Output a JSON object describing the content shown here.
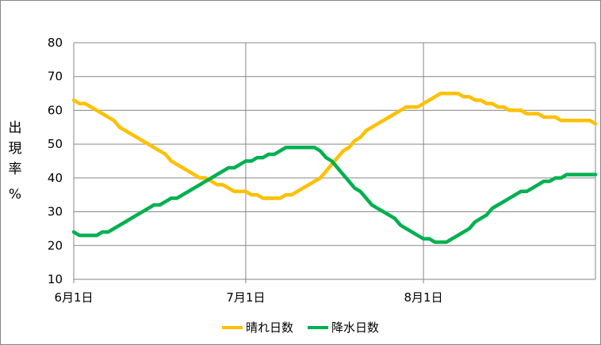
{
  "chart_data": {
    "type": "line",
    "title": "",
    "xlabel": "",
    "ylabel": "出現率 %",
    "ylabel_parts": [
      "出",
      "現",
      "率",
      "%"
    ],
    "ylim": [
      10,
      80
    ],
    "yticks": [
      10,
      20,
      30,
      40,
      50,
      60,
      70,
      80
    ],
    "xticks": [
      {
        "label": "6月1日",
        "day": 0
      },
      {
        "label": "7月1日",
        "day": 30
      },
      {
        "label": "8月1日",
        "day": 61
      }
    ],
    "x_range": [
      0,
      91
    ],
    "grid": true,
    "legend_position": "bottom",
    "series": [
      {
        "name": "晴れ日数",
        "color": "#FFC000",
        "points": [
          [
            0,
            63
          ],
          [
            1,
            62
          ],
          [
            2,
            62
          ],
          [
            3,
            61
          ],
          [
            4,
            60
          ],
          [
            5,
            59
          ],
          [
            6,
            58
          ],
          [
            7,
            57
          ],
          [
            8,
            55
          ],
          [
            9,
            54
          ],
          [
            10,
            53
          ],
          [
            11,
            52
          ],
          [
            12,
            51
          ],
          [
            13,
            50
          ],
          [
            14,
            49
          ],
          [
            15,
            48
          ],
          [
            16,
            47
          ],
          [
            17,
            45
          ],
          [
            18,
            44
          ],
          [
            19,
            43
          ],
          [
            20,
            42
          ],
          [
            21,
            41
          ],
          [
            22,
            40
          ],
          [
            23,
            40
          ],
          [
            24,
            39
          ],
          [
            25,
            38
          ],
          [
            26,
            38
          ],
          [
            27,
            37
          ],
          [
            28,
            36
          ],
          [
            29,
            36
          ],
          [
            30,
            36
          ],
          [
            31,
            35
          ],
          [
            32,
            35
          ],
          [
            33,
            34
          ],
          [
            34,
            34
          ],
          [
            35,
            34
          ],
          [
            36,
            34
          ],
          [
            37,
            35
          ],
          [
            38,
            35
          ],
          [
            39,
            36
          ],
          [
            40,
            37
          ],
          [
            41,
            38
          ],
          [
            42,
            39
          ],
          [
            43,
            40
          ],
          [
            44,
            42
          ],
          [
            45,
            44
          ],
          [
            46,
            46
          ],
          [
            47,
            48
          ],
          [
            48,
            49
          ],
          [
            49,
            51
          ],
          [
            50,
            52
          ],
          [
            51,
            54
          ],
          [
            52,
            55
          ],
          [
            53,
            56
          ],
          [
            54,
            57
          ],
          [
            55,
            58
          ],
          [
            56,
            59
          ],
          [
            57,
            60
          ],
          [
            58,
            61
          ],
          [
            59,
            61
          ],
          [
            60,
            61
          ],
          [
            61,
            62
          ],
          [
            62,
            63
          ],
          [
            63,
            64
          ],
          [
            64,
            65
          ],
          [
            65,
            65
          ],
          [
            66,
            65
          ],
          [
            67,
            65
          ],
          [
            68,
            64
          ],
          [
            69,
            64
          ],
          [
            70,
            63
          ],
          [
            71,
            63
          ],
          [
            72,
            62
          ],
          [
            73,
            62
          ],
          [
            74,
            61
          ],
          [
            75,
            61
          ],
          [
            76,
            60
          ],
          [
            77,
            60
          ],
          [
            78,
            60
          ],
          [
            79,
            59
          ],
          [
            80,
            59
          ],
          [
            81,
            59
          ],
          [
            82,
            58
          ],
          [
            83,
            58
          ],
          [
            84,
            58
          ],
          [
            85,
            57
          ],
          [
            86,
            57
          ],
          [
            87,
            57
          ],
          [
            88,
            57
          ],
          [
            89,
            57
          ],
          [
            90,
            57
          ],
          [
            91,
            56
          ]
        ]
      },
      {
        "name": "降水日数",
        "color": "#00B050",
        "points": [
          [
            0,
            24
          ],
          [
            1,
            23
          ],
          [
            2,
            23
          ],
          [
            3,
            23
          ],
          [
            4,
            23
          ],
          [
            5,
            24
          ],
          [
            6,
            24
          ],
          [
            7,
            25
          ],
          [
            8,
            26
          ],
          [
            9,
            27
          ],
          [
            10,
            28
          ],
          [
            11,
            29
          ],
          [
            12,
            30
          ],
          [
            13,
            31
          ],
          [
            14,
            32
          ],
          [
            15,
            32
          ],
          [
            16,
            33
          ],
          [
            17,
            34
          ],
          [
            18,
            34
          ],
          [
            19,
            35
          ],
          [
            20,
            36
          ],
          [
            21,
            37
          ],
          [
            22,
            38
          ],
          [
            23,
            39
          ],
          [
            24,
            40
          ],
          [
            25,
            41
          ],
          [
            26,
            42
          ],
          [
            27,
            43
          ],
          [
            28,
            43
          ],
          [
            29,
            44
          ],
          [
            30,
            45
          ],
          [
            31,
            45
          ],
          [
            32,
            46
          ],
          [
            33,
            46
          ],
          [
            34,
            47
          ],
          [
            35,
            47
          ],
          [
            36,
            48
          ],
          [
            37,
            49
          ],
          [
            38,
            49
          ],
          [
            39,
            49
          ],
          [
            40,
            49
          ],
          [
            41,
            49
          ],
          [
            42,
            49
          ],
          [
            43,
            48
          ],
          [
            44,
            46
          ],
          [
            45,
            45
          ],
          [
            46,
            43
          ],
          [
            47,
            41
          ],
          [
            48,
            39
          ],
          [
            49,
            37
          ],
          [
            50,
            36
          ],
          [
            51,
            34
          ],
          [
            52,
            32
          ],
          [
            53,
            31
          ],
          [
            54,
            30
          ],
          [
            55,
            29
          ],
          [
            56,
            28
          ],
          [
            57,
            26
          ],
          [
            58,
            25
          ],
          [
            59,
            24
          ],
          [
            60,
            23
          ],
          [
            61,
            22
          ],
          [
            62,
            22
          ],
          [
            63,
            21
          ],
          [
            64,
            21
          ],
          [
            65,
            21
          ],
          [
            66,
            22
          ],
          [
            67,
            23
          ],
          [
            68,
            24
          ],
          [
            69,
            25
          ],
          [
            70,
            27
          ],
          [
            71,
            28
          ],
          [
            72,
            29
          ],
          [
            73,
            31
          ],
          [
            74,
            32
          ],
          [
            75,
            33
          ],
          [
            76,
            34
          ],
          [
            77,
            35
          ],
          [
            78,
            36
          ],
          [
            79,
            36
          ],
          [
            80,
            37
          ],
          [
            81,
            38
          ],
          [
            82,
            39
          ],
          [
            83,
            39
          ],
          [
            84,
            40
          ],
          [
            85,
            40
          ],
          [
            86,
            41
          ],
          [
            87,
            41
          ],
          [
            88,
            41
          ],
          [
            89,
            41
          ],
          [
            90,
            41
          ],
          [
            91,
            41
          ]
        ]
      }
    ]
  }
}
